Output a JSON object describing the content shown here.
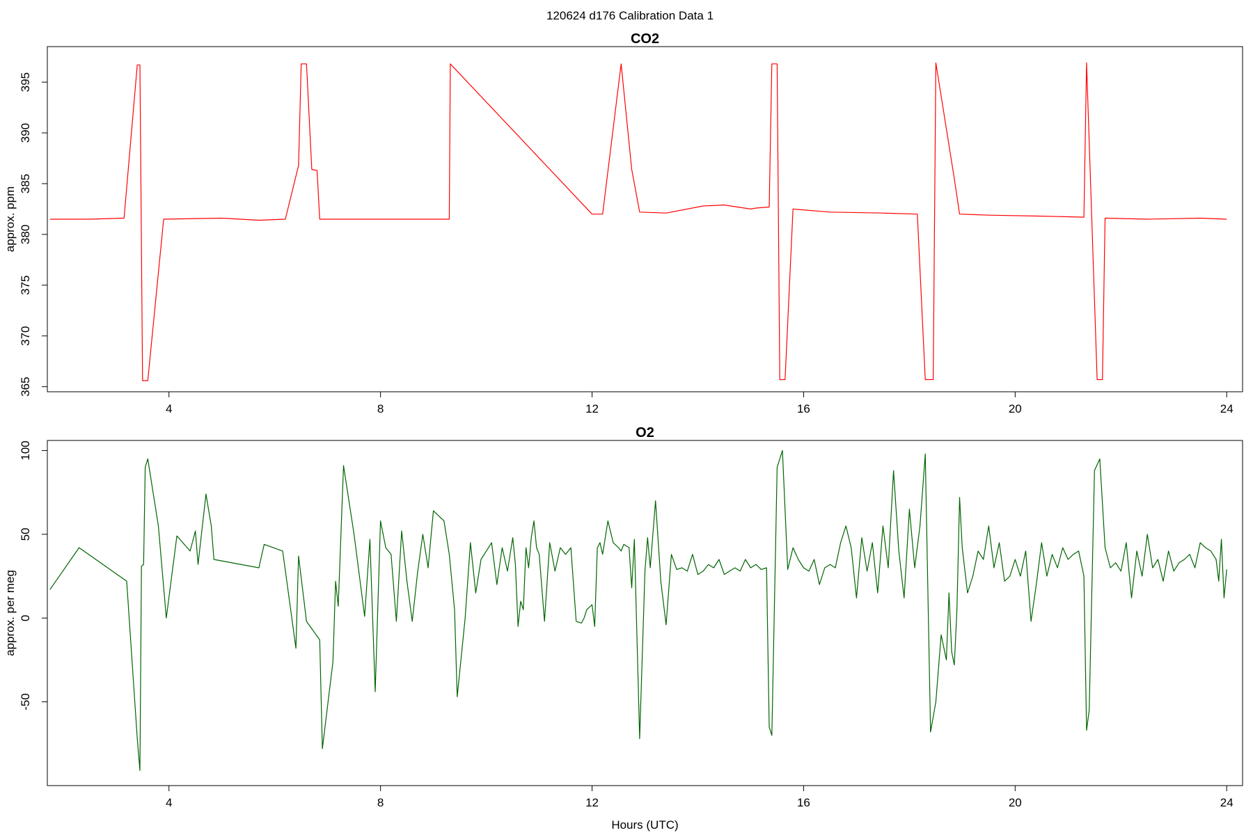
{
  "figure": {
    "suptitle": "120624   d176   Calibration Data 1"
  },
  "chart_data": [
    {
      "type": "line",
      "title": "CO2",
      "xlabel": "",
      "ylabel": "approx. ppm",
      "color": "#ff0000",
      "xlim": [
        1.7,
        24.3
      ],
      "ylim": [
        364.5,
        398.5
      ],
      "xticks": [
        4,
        8,
        12,
        16,
        20,
        24
      ],
      "yticks": [
        365,
        370,
        375,
        380,
        385,
        390,
        395
      ],
      "grid": false,
      "series": [
        {
          "values": [
            [
              1.75,
              381.5
            ],
            [
              2.5,
              381.5
            ],
            [
              3.15,
              381.6
            ],
            [
              3.4,
              396.7
            ],
            [
              3.45,
              396.7
            ],
            [
              3.5,
              365.6
            ],
            [
              3.6,
              365.6
            ],
            [
              3.9,
              381.5
            ],
            [
              5.0,
              381.6
            ],
            [
              5.7,
              381.4
            ],
            [
              6.2,
              381.5
            ],
            [
              6.45,
              386.8
            ],
            [
              6.5,
              396.8
            ],
            [
              6.6,
              396.8
            ],
            [
              6.7,
              386.4
            ],
            [
              6.8,
              386.3
            ],
            [
              6.85,
              381.5
            ],
            [
              8.0,
              381.5
            ],
            [
              9.3,
              381.5
            ],
            [
              9.32,
              396.8
            ],
            [
              12.0,
              382.0
            ],
            [
              12.2,
              382.0
            ],
            [
              12.55,
              396.8
            ],
            [
              12.75,
              386.4
            ],
            [
              12.9,
              382.2
            ],
            [
              13.4,
              382.1
            ],
            [
              14.1,
              382.8
            ],
            [
              14.5,
              382.9
            ],
            [
              15.0,
              382.5
            ],
            [
              15.1,
              382.6
            ],
            [
              15.35,
              382.7
            ],
            [
              15.4,
              396.8
            ],
            [
              15.5,
              396.8
            ],
            [
              15.55,
              365.7
            ],
            [
              15.65,
              365.7
            ],
            [
              15.8,
              382.5
            ],
            [
              16.5,
              382.2
            ],
            [
              17.5,
              382.1
            ],
            [
              18.15,
              382.0
            ],
            [
              18.3,
              365.7
            ],
            [
              18.45,
              365.7
            ],
            [
              18.5,
              396.9
            ],
            [
              18.85,
              385.5
            ],
            [
              18.95,
              382.0
            ],
            [
              19.5,
              381.9
            ],
            [
              20.5,
              381.8
            ],
            [
              21.3,
              381.7
            ],
            [
              21.35,
              396.9
            ],
            [
              21.55,
              365.7
            ],
            [
              21.65,
              365.7
            ],
            [
              21.7,
              381.6
            ],
            [
              22.5,
              381.5
            ],
            [
              23.5,
              381.6
            ],
            [
              24.0,
              381.5
            ]
          ]
        }
      ]
    },
    {
      "type": "line",
      "title": "O2",
      "xlabel": "Hours (UTC)",
      "ylabel": "approx. per meg",
      "color": "#006400",
      "xlim": [
        1.7,
        24.3
      ],
      "ylim": [
        -100,
        106
      ],
      "xticks": [
        4,
        8,
        12,
        16,
        20,
        24
      ],
      "yticks": [
        -50,
        0,
        50,
        100
      ],
      "grid": false,
      "series": [
        {
          "values": [
            [
              1.75,
              17
            ],
            [
              2.3,
              42
            ],
            [
              3.2,
              22
            ],
            [
              3.4,
              -72
            ],
            [
              3.45,
              -91
            ],
            [
              3.48,
              31
            ],
            [
              3.52,
              32
            ],
            [
              3.55,
              90
            ],
            [
              3.6,
              95
            ],
            [
              3.8,
              55
            ],
            [
              3.95,
              0
            ],
            [
              4.15,
              49
            ],
            [
              4.4,
              40
            ],
            [
              4.5,
              52
            ],
            [
              4.55,
              32
            ],
            [
              4.7,
              74
            ],
            [
              4.8,
              55
            ],
            [
              4.85,
              35
            ],
            [
              5.7,
              30
            ],
            [
              5.8,
              44
            ],
            [
              6.15,
              40
            ],
            [
              6.4,
              -18
            ],
            [
              6.45,
              37
            ],
            [
              6.6,
              -2
            ],
            [
              6.85,
              -13
            ],
            [
              6.9,
              -78
            ],
            [
              6.95,
              -65
            ],
            [
              7.1,
              -26
            ],
            [
              7.15,
              22
            ],
            [
              7.2,
              7
            ],
            [
              7.3,
              91
            ],
            [
              7.5,
              50
            ],
            [
              7.7,
              1
            ],
            [
              7.8,
              47
            ],
            [
              7.9,
              -44
            ],
            [
              8.0,
              58
            ],
            [
              8.1,
              42
            ],
            [
              8.2,
              38
            ],
            [
              8.3,
              -2
            ],
            [
              8.4,
              52
            ],
            [
              8.5,
              22
            ],
            [
              8.6,
              -2
            ],
            [
              8.7,
              27
            ],
            [
              8.8,
              50
            ],
            [
              8.9,
              30
            ],
            [
              9.0,
              64
            ],
            [
              9.2,
              58
            ],
            [
              9.3,
              38
            ],
            [
              9.4,
              5
            ],
            [
              9.45,
              -47
            ],
            [
              9.6,
              0
            ],
            [
              9.7,
              45
            ],
            [
              9.8,
              15
            ],
            [
              9.9,
              35
            ],
            [
              10.0,
              40
            ],
            [
              10.1,
              45
            ],
            [
              10.2,
              20
            ],
            [
              10.3,
              42
            ],
            [
              10.4,
              28
            ],
            [
              10.5,
              48
            ],
            [
              10.55,
              32
            ],
            [
              10.6,
              -5
            ],
            [
              10.65,
              10
            ],
            [
              10.7,
              5
            ],
            [
              10.75,
              42
            ],
            [
              10.8,
              30
            ],
            [
              10.85,
              48
            ],
            [
              10.9,
              58
            ],
            [
              10.95,
              42
            ],
            [
              11.0,
              38
            ],
            [
              11.1,
              -2
            ],
            [
              11.2,
              45
            ],
            [
              11.3,
              28
            ],
            [
              11.4,
              42
            ],
            [
              11.5,
              38
            ],
            [
              11.6,
              42
            ],
            [
              11.7,
              -2
            ],
            [
              11.8,
              -3
            ],
            [
              11.85,
              0
            ],
            [
              11.9,
              5
            ],
            [
              12.0,
              8
            ],
            [
              12.05,
              -5
            ],
            [
              12.1,
              42
            ],
            [
              12.15,
              45
            ],
            [
              12.2,
              38
            ],
            [
              12.3,
              58
            ],
            [
              12.4,
              45
            ],
            [
              12.5,
              42
            ],
            [
              12.55,
              40
            ],
            [
              12.6,
              44
            ],
            [
              12.7,
              42
            ],
            [
              12.75,
              18
            ],
            [
              12.8,
              47
            ],
            [
              12.9,
              -72
            ],
            [
              13.0,
              28
            ],
            [
              13.05,
              48
            ],
            [
              13.1,
              30
            ],
            [
              13.2,
              70
            ],
            [
              13.3,
              22
            ],
            [
              13.4,
              -4
            ],
            [
              13.5,
              38
            ],
            [
              13.6,
              29
            ],
            [
              13.7,
              30
            ],
            [
              13.8,
              28
            ],
            [
              13.9,
              38
            ],
            [
              14.0,
              26
            ],
            [
              14.1,
              28
            ],
            [
              14.2,
              32
            ],
            [
              14.3,
              30
            ],
            [
              14.4,
              35
            ],
            [
              14.5,
              26
            ],
            [
              14.6,
              28
            ],
            [
              14.7,
              30
            ],
            [
              14.8,
              28
            ],
            [
              14.9,
              35
            ],
            [
              15.0,
              30
            ],
            [
              15.1,
              32
            ],
            [
              15.2,
              29
            ],
            [
              15.3,
              30
            ],
            [
              15.35,
              -65
            ],
            [
              15.4,
              -70
            ],
            [
              15.5,
              90
            ],
            [
              15.6,
              100
            ],
            [
              15.7,
              29
            ],
            [
              15.8,
              42
            ],
            [
              15.9,
              35
            ],
            [
              16.0,
              30
            ],
            [
              16.1,
              28
            ],
            [
              16.2,
              35
            ],
            [
              16.3,
              20
            ],
            [
              16.4,
              30
            ],
            [
              16.5,
              32
            ],
            [
              16.6,
              30
            ],
            [
              16.7,
              45
            ],
            [
              16.8,
              55
            ],
            [
              16.9,
              42
            ],
            [
              17.0,
              12
            ],
            [
              17.1,
              48
            ],
            [
              17.2,
              28
            ],
            [
              17.3,
              45
            ],
            [
              17.4,
              15
            ],
            [
              17.5,
              55
            ],
            [
              17.6,
              30
            ],
            [
              17.7,
              88
            ],
            [
              17.8,
              40
            ],
            [
              17.9,
              12
            ],
            [
              18.0,
              65
            ],
            [
              18.1,
              30
            ],
            [
              18.2,
              55
            ],
            [
              18.3,
              98
            ],
            [
              18.4,
              -68
            ],
            [
              18.5,
              -50
            ],
            [
              18.6,
              -10
            ],
            [
              18.7,
              -25
            ],
            [
              18.75,
              15
            ],
            [
              18.8,
              -20
            ],
            [
              18.85,
              -28
            ],
            [
              18.9,
              5
            ],
            [
              18.95,
              72
            ],
            [
              19.0,
              42
            ],
            [
              19.1,
              15
            ],
            [
              19.2,
              25
            ],
            [
              19.3,
              40
            ],
            [
              19.4,
              35
            ],
            [
              19.5,
              55
            ],
            [
              19.6,
              30
            ],
            [
              19.7,
              45
            ],
            [
              19.8,
              22
            ],
            [
              19.9,
              25
            ],
            [
              20.0,
              35
            ],
            [
              20.1,
              25
            ],
            [
              20.2,
              40
            ],
            [
              20.3,
              -2
            ],
            [
              20.4,
              20
            ],
            [
              20.5,
              45
            ],
            [
              20.6,
              25
            ],
            [
              20.7,
              38
            ],
            [
              20.8,
              30
            ],
            [
              20.9,
              42
            ],
            [
              21.0,
              35
            ],
            [
              21.1,
              38
            ],
            [
              21.2,
              40
            ],
            [
              21.3,
              25
            ],
            [
              21.35,
              -67
            ],
            [
              21.4,
              -55
            ],
            [
              21.5,
              88
            ],
            [
              21.6,
              95
            ],
            [
              21.7,
              42
            ],
            [
              21.8,
              30
            ],
            [
              21.9,
              33
            ],
            [
              22.0,
              28
            ],
            [
              22.1,
              45
            ],
            [
              22.2,
              12
            ],
            [
              22.3,
              40
            ],
            [
              22.4,
              25
            ],
            [
              22.5,
              50
            ],
            [
              22.6,
              30
            ],
            [
              22.7,
              35
            ],
            [
              22.8,
              22
            ],
            [
              22.9,
              40
            ],
            [
              23.0,
              28
            ],
            [
              23.1,
              33
            ],
            [
              23.2,
              35
            ],
            [
              23.3,
              38
            ],
            [
              23.4,
              30
            ],
            [
              23.5,
              45
            ],
            [
              23.6,
              42
            ],
            [
              23.7,
              40
            ],
            [
              23.8,
              35
            ],
            [
              23.85,
              22
            ],
            [
              23.9,
              47
            ],
            [
              23.95,
              12
            ],
            [
              24.0,
              29
            ]
          ]
        }
      ]
    }
  ]
}
